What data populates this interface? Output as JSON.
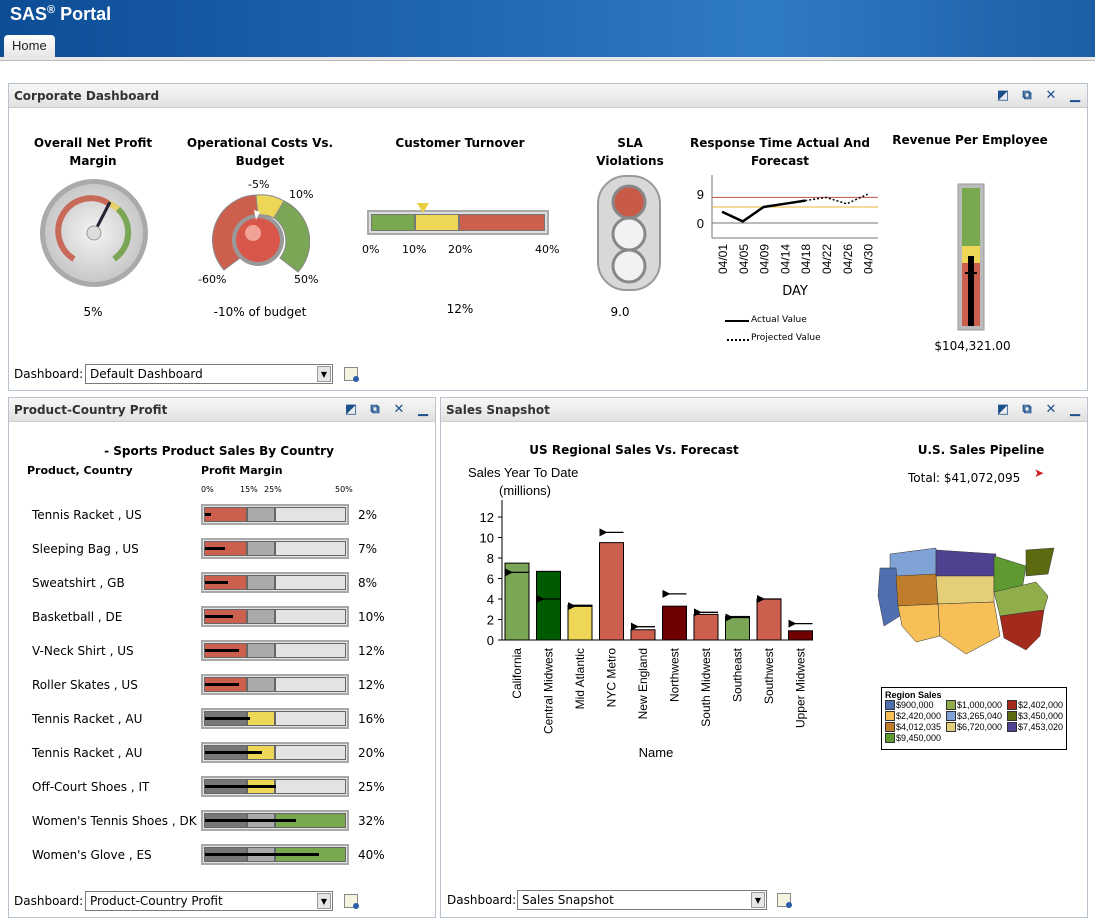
{
  "app": {
    "title": "SAS",
    "title_sup": "®",
    "title_rest": " Portal",
    "tab": "Home"
  },
  "corporate": {
    "title": "Corporate Dashboard",
    "net_profit": {
      "title1": "Overall Net Profit",
      "title2": "Margin",
      "value": "5%"
    },
    "op_costs": {
      "title1": "Operational Costs Vs.",
      "title2": "Budget",
      "labels": [
        "-5%",
        "10%",
        "-60%",
        "50%"
      ],
      "value": "-10% of budget"
    },
    "turnover": {
      "title": "Customer Turnover",
      "ticks": [
        "0%",
        "10%",
        "20%",
        "40%"
      ],
      "value": "12%",
      "marker_pct": 12,
      "zones": [
        {
          "to": 10,
          "color": "#78a94f"
        },
        {
          "to": 20,
          "color": "#eed757"
        },
        {
          "to": 40,
          "color": "#cd5f4f"
        }
      ]
    },
    "sla": {
      "title1": "SLA",
      "title2": "Violations",
      "value": "9.0"
    },
    "response": {
      "title1": "Response Time Actual And",
      "title2": "Forecast",
      "xlabel": "DAY",
      "legend_actual": "Actual Value",
      "legend_projected": "Projected Value"
    },
    "revenue": {
      "title": "Revenue Per Employee",
      "value": "$104,321.00"
    },
    "dashboard_label": "Dashboard:",
    "dashboard_value": "Default Dashboard"
  },
  "product": {
    "title": "Product-Country Profit",
    "chart_title": "- Sports Product Sales By Country",
    "col1": "Product, Country",
    "col2": "Profit Margin",
    "scale": [
      "0%",
      "15%",
      "25%",
      "50%"
    ],
    "rows": [
      {
        "label": "Tennis Racket , US",
        "pct": "2%",
        "v": 2
      },
      {
        "label": "Sleeping Bag , US",
        "pct": "7%",
        "v": 7
      },
      {
        "label": "Sweatshirt , GB",
        "pct": "8%",
        "v": 8
      },
      {
        "label": "Basketball , DE",
        "pct": "10%",
        "v": 10
      },
      {
        "label": "V-Neck Shirt , US",
        "pct": "12%",
        "v": 12
      },
      {
        "label": "Roller Skates , US",
        "pct": "12%",
        "v": 12
      },
      {
        "label": "Tennis Racket , AU",
        "pct": "16%",
        "v": 16
      },
      {
        "label": "Tennis Racket , AU",
        "pct": "20%",
        "v": 20
      },
      {
        "label": "Off-Court Shoes , IT",
        "pct": "25%",
        "v": 25
      },
      {
        "label": "Women's Tennis Shoes , DK",
        "pct": "32%",
        "v": 32
      },
      {
        "label": "Women's Glove , ES",
        "pct": "40%",
        "v": 40
      }
    ],
    "dashboard_label": "Dashboard:",
    "dashboard_value": "Product-Country Profit"
  },
  "sales": {
    "title": "Sales Snapshot",
    "pipeline_title": "U.S. Sales Pipeline",
    "pipeline_total": "Total: $41,072,095",
    "legend_title": "Region Sales",
    "legend": [
      {
        "label": "$900,000",
        "color": "#4f6fb0"
      },
      {
        "label": "$1,000,000",
        "color": "#8fae4a"
      },
      {
        "label": "$2,402,000",
        "color": "#a32a1c"
      },
      {
        "label": "$2,420,000",
        "color": "#f6bf58"
      },
      {
        "label": "$3,265,040",
        "color": "#7fa3d6"
      },
      {
        "label": "$3,450,000",
        "color": "#5c6a10"
      },
      {
        "label": "$4,012,035",
        "color": "#c07d2c"
      },
      {
        "label": "$6,720,000",
        "color": "#e4cf78"
      },
      {
        "label": "$7,453,020",
        "color": "#4e4190"
      },
      {
        "label": "$9,450,000",
        "color": "#5e9a2f"
      }
    ],
    "dashboard_label": "Dashboard:",
    "dashboard_value": "Sales Snapshot"
  },
  "chart_data": [
    {
      "type": "bar",
      "title": "US Regional Sales Vs. Forecast",
      "ylabel1": "Sales Year To Date",
      "ylabel2": "(millions)",
      "xlabel": "Name",
      "ylim": [
        0,
        13
      ],
      "yticks": [
        0,
        2,
        4,
        6,
        8,
        10,
        12
      ],
      "categories": [
        "California",
        "Central Midwest",
        "Mid Atlantic",
        "NYC Metro",
        "New England",
        "Northwest",
        "South Midwest",
        "Southeast",
        "Southwest",
        "Upper Midwest"
      ],
      "values": [
        7.5,
        6.7,
        3.4,
        9.5,
        1.0,
        3.3,
        2.5,
        2.3,
        4.0,
        0.9
      ],
      "targets": [
        6.6,
        4.0,
        3.3,
        10.5,
        1.3,
        4.5,
        2.7,
        2.2,
        4.0,
        1.6
      ],
      "colors": [
        "#7aa655",
        "#005a00",
        "#eed757",
        "#cd5f4f",
        "#cd5f4f",
        "#700000",
        "#cd5f4f",
        "#7aa655",
        "#cd5f4f",
        "#700000"
      ]
    },
    {
      "type": "line",
      "title": "Response Time Actual And Forecast",
      "xlabel": "DAY",
      "yticks": [
        0,
        9
      ],
      "x": [
        "04/01",
        "04/05",
        "04/09",
        "04/14",
        "04/18",
        "04/22",
        "04/26",
        "04/30"
      ],
      "series": [
        {
          "name": "Actual Value",
          "values": [
            3.5,
            0.5,
            5,
            6,
            7,
            null,
            null,
            null
          ]
        },
        {
          "name": "Projected Value",
          "values": [
            null,
            null,
            null,
            null,
            7,
            8,
            6,
            9
          ]
        }
      ],
      "thresholds": [
        {
          "value": 8,
          "color": "#c0504d"
        },
        {
          "value": 5,
          "color": "#e8b830"
        }
      ]
    }
  ]
}
